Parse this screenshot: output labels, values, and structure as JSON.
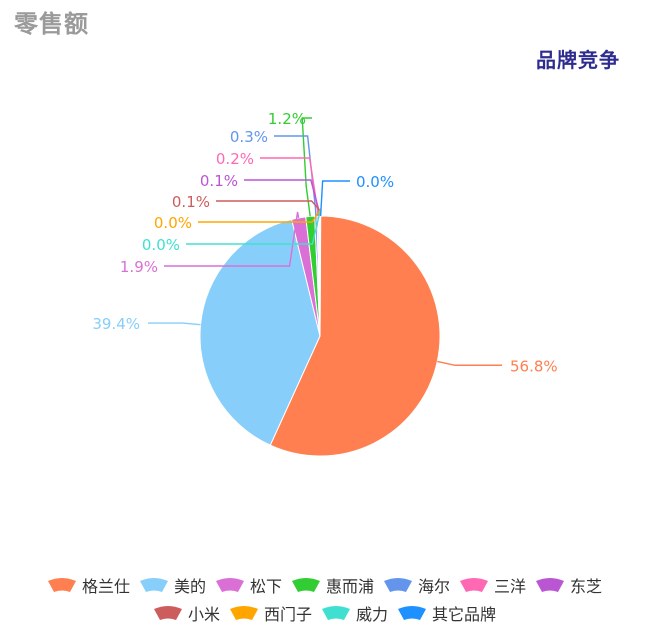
{
  "header": {
    "section_title": "零售额",
    "chart_title": "品牌竞争"
  },
  "chart_data": {
    "type": "pie",
    "title": "品牌竞争",
    "unit": "%",
    "slices": [
      {
        "name": "格兰仕",
        "value": 56.8,
        "label": "56.8%",
        "color": "#ff7f50"
      },
      {
        "name": "美的",
        "value": 39.4,
        "label": "39.4%",
        "color": "#87cefa"
      },
      {
        "name": "松下",
        "value": 1.9,
        "label": "1.9%",
        "color": "#da70d6"
      },
      {
        "name": "惠而浦",
        "value": 1.2,
        "label": "1.2%",
        "color": "#32cd32"
      },
      {
        "name": "海尔",
        "value": 0.3,
        "label": "0.3%",
        "color": "#6495ed"
      },
      {
        "name": "三洋",
        "value": 0.2,
        "label": "0.2%",
        "color": "#ff69b4"
      },
      {
        "name": "东芝",
        "value": 0.1,
        "label": "0.1%",
        "color": "#ba55d3"
      },
      {
        "name": "小米",
        "value": 0.1,
        "label": "0.1%",
        "color": "#cd5c5c"
      },
      {
        "name": "西门子",
        "value": 0.0,
        "label": "0.0%",
        "color": "#ffa500"
      },
      {
        "name": "威力",
        "value": 0.0,
        "label": "0.0%",
        "color": "#40e0d0"
      },
      {
        "name": "其它品牌",
        "value": 0.0,
        "label": "0.0%",
        "color": "#1e90ff"
      }
    ],
    "legend_position": "bottom"
  }
}
